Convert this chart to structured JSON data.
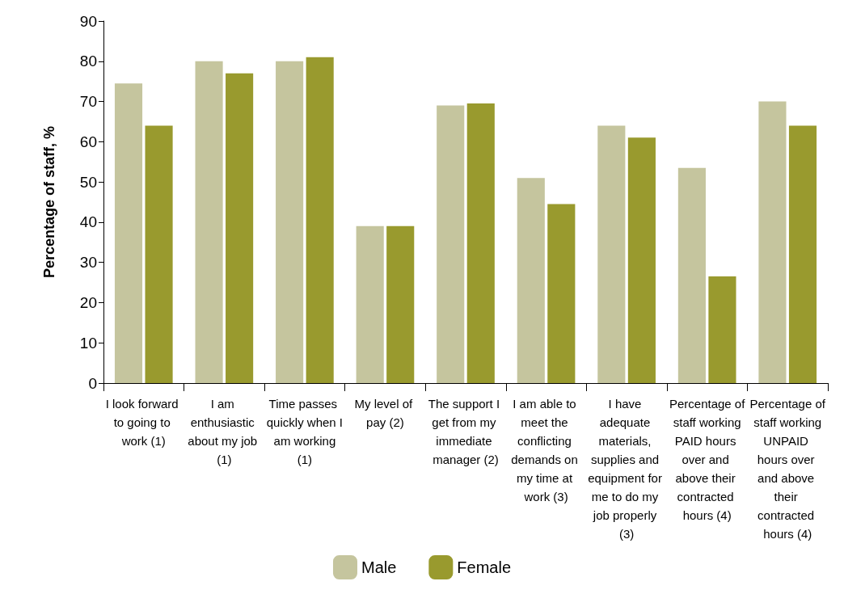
{
  "chart_data": {
    "type": "bar",
    "ylabel": "Percentage of staff, %",
    "categories": [
      "I look forward to going to work (1)",
      "I am enthusiastic about my job (1)",
      "Time passes quickly when I am working (1)",
      "My level of pay (2)",
      "The support I get from my immediate manager (2)",
      "I am able to meet the conflicting demands on my time at work (3)",
      "I have adequate materials, supplies and equipment for me to do my job properly (3)",
      "Percentage of staff working PAID hours over and above their contracted hours (4)",
      "Percentage of staff working UNPAID hours over and above their contracted hours (4)"
    ],
    "series": [
      {
        "name": "Male",
        "color": "#c5c59e",
        "values": [
          74.5,
          80,
          80,
          39,
          69,
          51,
          64,
          53.5,
          70
        ]
      },
      {
        "name": "Female",
        "color": "#999a2e",
        "values": [
          64,
          77,
          81,
          39,
          69.5,
          44.5,
          61,
          26.5,
          64
        ]
      }
    ],
    "ylim": [
      0,
      90
    ],
    "yticks": [
      0,
      10,
      20,
      30,
      40,
      50,
      60,
      70,
      80,
      90
    ],
    "grid": false,
    "legend": "bottom"
  }
}
